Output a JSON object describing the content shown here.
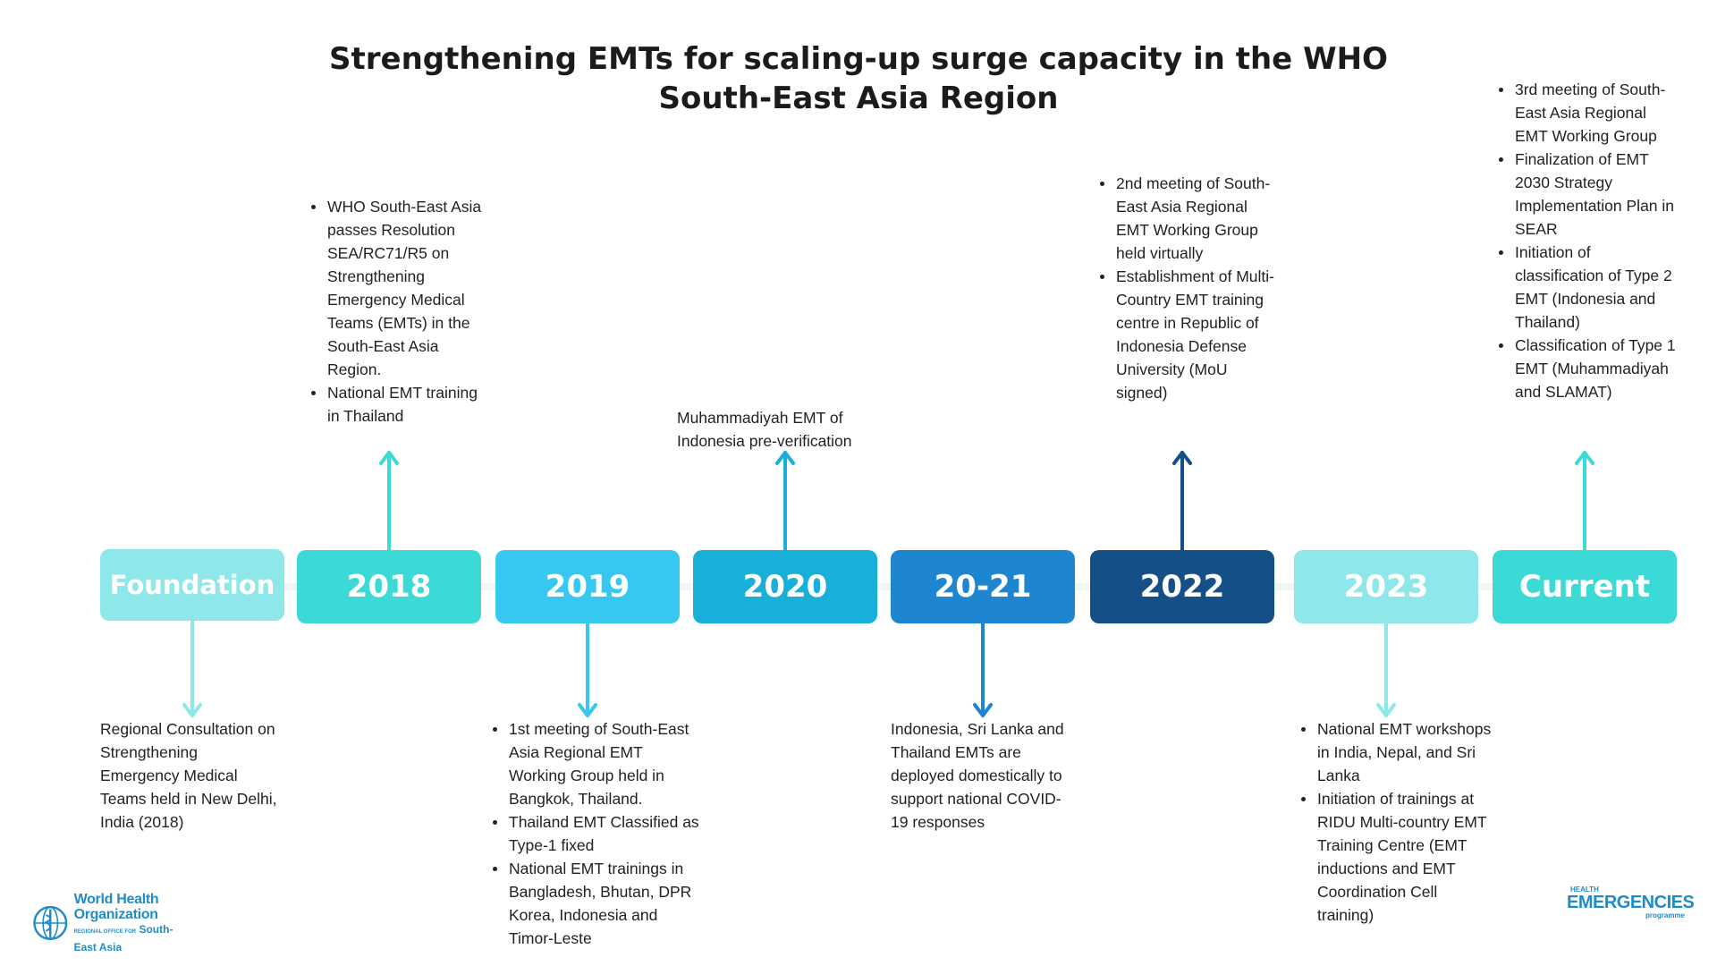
{
  "title": "Strengthening EMTs for scaling-up surge capacity in the WHO South-East Asia Region",
  "colors": {
    "foundation": "#8ee8ea",
    "y2018": "#3cdad6",
    "y2019": "#36c8f0",
    "y2020": "#18b0d8",
    "y2021": "#1e86d0",
    "y2022": "#154f88",
    "y2023": "#8ee8ea",
    "current": "#3cdad6"
  },
  "timeline": [
    {
      "label": "Foundation",
      "position": "below",
      "items": [
        "Regional Consultation on Strengthening Emergency Medical Teams held in New Delhi, India (2018)"
      ],
      "bulleted": false
    },
    {
      "label": "2018",
      "position": "above",
      "items": [
        "WHO South-East Asia passes Resolution SEA/RC71/R5 on Strengthening Emergency Medical Teams (EMTs) in the South-East Asia Region.",
        "National EMT training in Thailand"
      ],
      "bulleted": true
    },
    {
      "label": "2019",
      "position": "below",
      "items": [
        "1st meeting of South-East Asia Regional EMT Working Group held in Bangkok, Thailand.",
        "Thailand EMT Classified as Type-1 fixed",
        "National EMT trainings in Bangladesh, Bhutan, DPR Korea, Indonesia and Timor-Leste"
      ],
      "bulleted": true
    },
    {
      "label": "2020",
      "position": "above",
      "items": [
        "Muhammadiyah EMT of Indonesia pre-verification"
      ],
      "bulleted": false
    },
    {
      "label": "20-21",
      "position": "below",
      "items": [
        "Indonesia, Sri Lanka and Thailand EMTs are deployed domestically to support national COVID-19 responses"
      ],
      "bulleted": false
    },
    {
      "label": "2022",
      "position": "above",
      "items": [
        "2nd meeting of South-East Asia Regional EMT Working Group held virtually",
        "Establishment of Multi-Country EMT training centre in Republic of Indonesia Defense University (MoU signed)"
      ],
      "bulleted": true
    },
    {
      "label": "2023",
      "position": "below",
      "items": [
        "National EMT workshops in India, Nepal, and Sri Lanka",
        "Initiation of trainings at RIDU Multi-country EMT Training Centre (EMT inductions and EMT Coordination Cell training)"
      ],
      "bulleted": true
    },
    {
      "label": "Current",
      "position": "above",
      "items": [
        "3rd meeting of South-East Asia Regional EMT Working Group",
        "Finalization of EMT 2030 Strategy Implementation Plan in SEAR",
        "Initiation of classification of Type 2 EMT (Indonesia and Thailand)",
        "Classification of Type 1 EMT (Muhammadiyah and SLAMAT)"
      ],
      "bulleted": true
    }
  ],
  "logos": {
    "who": {
      "line1": "World Health",
      "line2": "Organization",
      "line3_small": "REGIONAL OFFICE FOR",
      "line3": "South-East Asia",
      "icon": "who-emblem-icon"
    },
    "health_emergencies": {
      "line1": "HEALTH",
      "line2": "EMERGENCIES",
      "line3": "programme"
    }
  }
}
